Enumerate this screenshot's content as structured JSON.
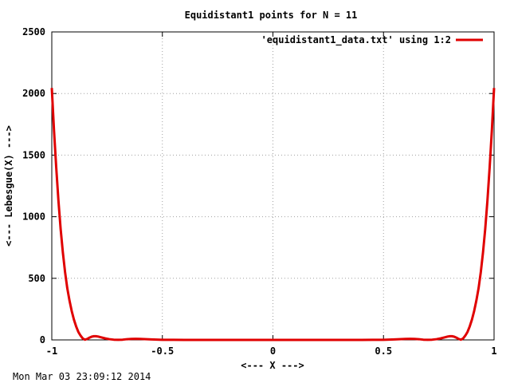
{
  "chart_data": {
    "type": "line",
    "title": "Equidistant1 points for N = 11",
    "xlabel": "<--- X --->",
    "ylabel": "<--- Lebesgue(X) --->",
    "xlim": [
      -1,
      1
    ],
    "ylim": [
      0,
      2500
    ],
    "xticks": [
      -1,
      -0.5,
      0,
      0.5,
      1
    ],
    "xtick_labels": [
      "-1",
      "-0.5",
      "0",
      "0.5",
      "1"
    ],
    "yticks": [
      0,
      500,
      1000,
      1500,
      2000,
      2500
    ],
    "ytick_labels": [
      "0",
      "500",
      "1000",
      "1500",
      "2000",
      "2500"
    ],
    "grid": true,
    "legend_position": "top-right",
    "series": [
      {
        "name": "'equidistant1_data.txt' using 1:2",
        "color": "#e00000",
        "x": [
          -1.0,
          -0.99,
          -0.98,
          -0.97,
          -0.96,
          -0.95,
          -0.94,
          -0.93,
          -0.92,
          -0.91,
          -0.9,
          -0.89,
          -0.88,
          -0.87,
          -0.86,
          -0.85,
          -0.84,
          -0.83,
          -0.82,
          -0.81,
          -0.8,
          -0.79,
          -0.78,
          -0.76,
          -0.74,
          -0.72,
          -0.7,
          -0.68,
          -0.66,
          -0.64,
          -0.62,
          -0.6,
          -0.55,
          -0.5,
          -0.45,
          -0.4,
          -0.3,
          -0.2,
          -0.1,
          0.0,
          0.1,
          0.2,
          0.3,
          0.4,
          0.45,
          0.5,
          0.55,
          0.6,
          0.62,
          0.64,
          0.66,
          0.68,
          0.7,
          0.72,
          0.74,
          0.76,
          0.78,
          0.79,
          0.8,
          0.81,
          0.82,
          0.83,
          0.84,
          0.85,
          0.86,
          0.87,
          0.88,
          0.89,
          0.9,
          0.91,
          0.92,
          0.93,
          0.94,
          0.95,
          0.96,
          0.97,
          0.98,
          0.99,
          1.0
        ],
        "y": [
          2045,
          1700,
          1400,
          1130,
          900,
          710,
          550,
          420,
          320,
          235,
          165,
          110,
          65,
          35,
          12,
          2,
          8,
          18,
          26,
          30,
          30,
          27,
          22,
          13,
          6,
          2,
          0.5,
          2,
          6,
          8,
          9,
          8,
          4,
          1,
          0.5,
          0.3,
          0.2,
          0.1,
          0.1,
          0.1,
          0.1,
          0.1,
          0.2,
          0.3,
          0.5,
          1,
          4,
          8,
          9,
          8,
          6,
          2,
          0.5,
          2,
          6,
          13,
          22,
          27,
          30,
          30,
          26,
          18,
          8,
          2,
          12,
          35,
          65,
          110,
          165,
          235,
          320,
          420,
          550,
          710,
          900,
          1130,
          1400,
          1700,
          2045
        ]
      }
    ]
  },
  "footer": {
    "timestamp": "Mon Mar 03 23:09:12 2014"
  }
}
